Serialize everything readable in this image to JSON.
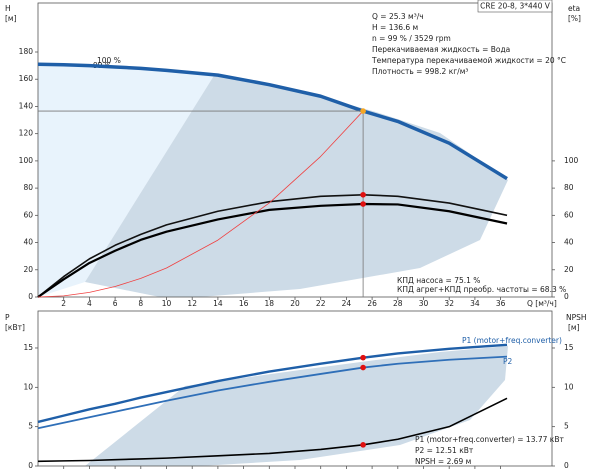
{
  "chart_data": [
    {
      "type": "line",
      "title": "CRE 20-8, 3*440 V",
      "y_label": [
        "H",
        "[м]"
      ],
      "y2_label": [
        "eta",
        "[%]"
      ],
      "x_label": "Q [м³/ч]",
      "info": [
        "Q = 25.3 м³/ч",
        "H = 136.6 м",
        "n = 99 % / 3529 rpm",
        "Перекачиваемая жидкость = Вода",
        "Температура перекачиваемой жидкости = 20 °C",
        "Плотность = 998.2 кг/м³"
      ],
      "curve_labels": [
        "100 %",
        "99 %"
      ],
      "notes": [
        "КПД насоса = 75.1 %",
        "КПД агрег+КПД преобр. частоты = 68.3 %"
      ],
      "x": [
        0,
        2,
        4,
        6,
        8,
        10,
        14,
        18,
        22,
        25.3,
        28,
        32,
        36.5
      ],
      "xlim": [
        0,
        40
      ],
      "xticks": [
        2,
        4,
        6,
        8,
        10,
        12,
        14,
        16,
        18,
        20,
        22,
        24,
        26,
        28,
        30,
        32,
        34,
        36
      ],
      "ylim": [
        0,
        216
      ],
      "yticks": [
        0,
        20,
        40,
        60,
        80,
        100,
        120,
        140,
        160,
        180
      ],
      "y2lim": [
        0,
        216
      ],
      "y2ticks": [
        0,
        20,
        40,
        60,
        80,
        100
      ],
      "series": [
        {
          "color": "#1f5fa8",
          "width": 3.5,
          "values": [
            171,
            170.6,
            170,
            169,
            168,
            166.5,
            163,
            156,
            147.5,
            136.6,
            129,
            113,
            87
          ]
        },
        {
          "color": "#111111",
          "width": 1.6,
          "axis": "y2",
          "values": [
            0,
            15,
            28,
            38,
            46,
            53,
            63,
            70,
            74,
            75.1,
            74,
            69,
            60
          ]
        },
        {
          "color": "#000000",
          "width": 2.2,
          "axis": "y2",
          "values": [
            0,
            13,
            25,
            34,
            42,
            48,
            57,
            64,
            67,
            68.3,
            68,
            63,
            54
          ]
        },
        {
          "color": "#f04040",
          "width": 0.8,
          "values": [
            0,
            0.85,
            3.4,
            7.7,
            13.7,
            21.3,
            41.8,
            69.1,
            103.3,
            136.6,
            null,
            null,
            null
          ]
        }
      ],
      "markers": [
        {
          "x": 25.3,
          "y": 136.6,
          "color": "#f5a623"
        },
        {
          "x": 25.3,
          "y": 75.1,
          "axis": "y2",
          "color": "#e01010"
        },
        {
          "x": 25.3,
          "y": 68.3,
          "axis": "y2",
          "color": "#e01010"
        }
      ]
    },
    {
      "type": "line",
      "y_label": [
        "P",
        "[кВт]"
      ],
      "y2_label": [
        "NPSH",
        "[м]"
      ],
      "notes": [
        "P1 (motor+freq.converter) = 13.77 кВт",
        "P2 = 12.51 кВт",
        "NPSH = 2.69 м"
      ],
      "x": [
        0,
        2,
        4,
        6,
        8,
        10,
        14,
        18,
        22,
        25.3,
        28,
        32,
        36.5
      ],
      "xlim": [
        0,
        40
      ],
      "xticks": [
        2,
        4,
        6,
        8,
        10,
        12,
        14,
        16,
        18,
        20,
        22,
        24,
        26,
        28,
        30,
        32,
        34,
        36
      ],
      "ylim": [
        0,
        19.7
      ],
      "yticks": [
        0,
        5,
        10,
        15
      ],
      "y2lim": [
        0,
        19.7
      ],
      "y2ticks": [
        0,
        5,
        10,
        15
      ],
      "series": [
        {
          "name": "P1 (motor+freq.converter)",
          "color": "#1f5fa8",
          "width": 2.4,
          "values": [
            5.6,
            6.4,
            7.2,
            7.9,
            8.7,
            9.4,
            10.8,
            12.0,
            13.0,
            13.77,
            14.3,
            14.9,
            15.4
          ]
        },
        {
          "name": "P2",
          "color": "#2f6fb8",
          "width": 1.8,
          "values": [
            4.8,
            5.5,
            6.2,
            6.9,
            7.6,
            8.3,
            9.6,
            10.7,
            11.7,
            12.51,
            13.0,
            13.5,
            13.9
          ]
        },
        {
          "color": "#000000",
          "width": 1.6,
          "axis": "y2",
          "values": [
            0.6,
            0.65,
            0.7,
            0.8,
            0.9,
            1.0,
            1.3,
            1.6,
            2.1,
            2.69,
            3.4,
            5.0,
            8.6
          ]
        }
      ],
      "markers": [
        {
          "x": 25.3,
          "y": 13.77,
          "color": "#e01010"
        },
        {
          "x": 25.3,
          "y": 12.51,
          "color": "#e01010"
        },
        {
          "x": 25.3,
          "y": 2.69,
          "axis": "y2",
          "color": "#e01010"
        }
      ]
    }
  ]
}
